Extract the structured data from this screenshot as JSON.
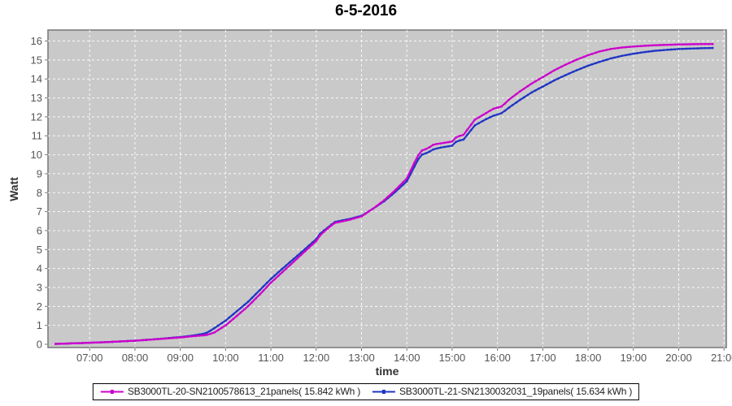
{
  "title": "6-5-2016",
  "chart_data": {
    "type": "line",
    "title": "6-5-2016",
    "xlabel": "time",
    "ylabel": "Watt",
    "x_unit": "hour_of_day",
    "xlim": [
      6.08,
      21.05
    ],
    "ylim": [
      0,
      16
    ],
    "grid": "white dashed on gray plot background",
    "legend_position": "bottom-center",
    "plot_bg": "#C9C9C9",
    "grid_color": "#FFFFFF",
    "border_color": "#7D7D7D",
    "tick_text_color": "#555555",
    "x_ticks": {
      "values": [
        7,
        8,
        9,
        10,
        11,
        12,
        13,
        14,
        15,
        16,
        17,
        18,
        19,
        20,
        21
      ],
      "labels": [
        "07:00",
        "08:00",
        "09:00",
        "10:00",
        "11:00",
        "12:00",
        "13:00",
        "14:00",
        "15:00",
        "16:00",
        "17:00",
        "18:00",
        "19:00",
        "20:00",
        "21:00"
      ]
    },
    "y_ticks": [
      0,
      1,
      2,
      3,
      4,
      5,
      6,
      7,
      8,
      9,
      10,
      11,
      12,
      13,
      14,
      15,
      16
    ],
    "x": [
      6.25,
      6.5,
      7.0,
      7.5,
      8.0,
      8.5,
      9.0,
      9.25,
      9.5,
      9.6,
      9.75,
      10.0,
      10.25,
      10.5,
      10.75,
      11.0,
      11.25,
      11.5,
      11.75,
      12.0,
      12.1,
      12.25,
      12.4,
      12.6,
      12.75,
      13.0,
      13.25,
      13.5,
      13.75,
      14.0,
      14.15,
      14.3,
      14.45,
      14.6,
      14.75,
      15.0,
      15.1,
      15.25,
      15.5,
      15.75,
      15.9,
      16.1,
      16.25,
      16.5,
      16.75,
      17.0,
      17.25,
      17.5,
      17.75,
      18.0,
      18.25,
      18.5,
      18.75,
      19.0,
      19.25,
      19.5,
      19.75,
      20.0,
      20.25,
      20.5,
      20.75
    ],
    "series": [
      {
        "name": "SB3000TL-20-SN2100578613_21panels( 15.842 kWh )",
        "total_kwh": 15.842,
        "color": "#CC00CC",
        "values": [
          0.02,
          0.04,
          0.08,
          0.13,
          0.19,
          0.27,
          0.36,
          0.42,
          0.47,
          0.5,
          0.62,
          1.0,
          1.5,
          2.02,
          2.62,
          3.25,
          3.8,
          4.35,
          4.9,
          5.45,
          5.8,
          6.1,
          6.4,
          6.5,
          6.58,
          6.75,
          7.15,
          7.6,
          8.15,
          8.75,
          9.5,
          10.2,
          10.32,
          10.55,
          10.6,
          10.7,
          10.95,
          11.05,
          11.85,
          12.2,
          12.42,
          12.55,
          12.9,
          13.35,
          13.75,
          14.1,
          14.45,
          14.75,
          15.02,
          15.25,
          15.45,
          15.58,
          15.66,
          15.71,
          15.75,
          15.78,
          15.8,
          15.82,
          15.83,
          15.84,
          15.842
        ]
      },
      {
        "name": "SB3000TL-21-SN2130032031_19panels( 15.634 kWh )",
        "total_kwh": 15.634,
        "color": "#1F35C4",
        "values": [
          0.02,
          0.04,
          0.08,
          0.13,
          0.19,
          0.28,
          0.38,
          0.45,
          0.55,
          0.62,
          0.85,
          1.25,
          1.75,
          2.25,
          2.85,
          3.45,
          3.98,
          4.5,
          5.02,
          5.55,
          5.88,
          6.15,
          6.45,
          6.55,
          6.62,
          6.78,
          7.15,
          7.55,
          8.05,
          8.6,
          9.3,
          9.98,
          10.1,
          10.3,
          10.38,
          10.48,
          10.72,
          10.8,
          11.55,
          11.88,
          12.05,
          12.2,
          12.48,
          12.9,
          13.28,
          13.6,
          13.92,
          14.2,
          14.46,
          14.7,
          14.9,
          15.08,
          15.22,
          15.33,
          15.42,
          15.49,
          15.54,
          15.58,
          15.6,
          15.62,
          15.634
        ]
      }
    ]
  }
}
